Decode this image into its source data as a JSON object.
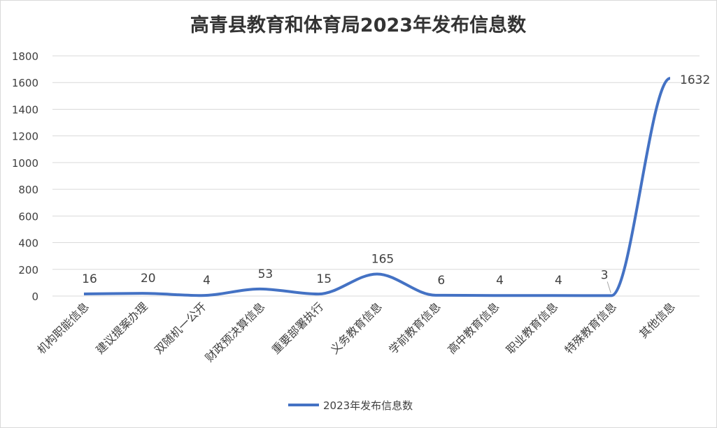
{
  "chart_data": {
    "type": "line",
    "title": "高青县教育和体育局2023年发布信息数",
    "categories": [
      "机构职能信息",
      "建议提案办理",
      "双随机一公开",
      "财政预决算信息",
      "重要部署执行",
      "义务教育信息",
      "学前教育信息",
      "高中教育信息",
      "职业教育信息",
      "特殊教育信息",
      "其他信息"
    ],
    "series": [
      {
        "name": "2023年发布信息数",
        "values": [
          16,
          20,
          4,
          53,
          15,
          165,
          6,
          4,
          4,
          3,
          1632
        ],
        "color": "#4472c4"
      }
    ],
    "ylim": [
      0,
      1800
    ],
    "yticks": [
      "0",
      "200",
      "400",
      "600",
      "800",
      "1000",
      "1200",
      "1400",
      "1600",
      "1800"
    ],
    "grid": true,
    "legend": "bottom",
    "data_labels": true
  }
}
